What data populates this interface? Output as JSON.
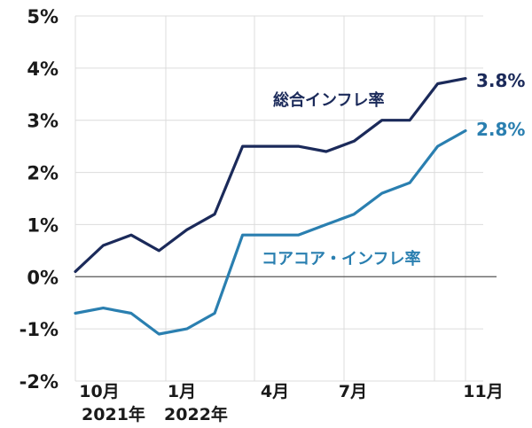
{
  "chart_data": {
    "type": "line",
    "title": "",
    "xlabel": "",
    "ylabel": "",
    "ylim": [
      -2,
      5
    ],
    "yticks": [
      "5%",
      "4%",
      "3%",
      "2%",
      "1%",
      "0%",
      "-1%",
      "-2%"
    ],
    "x": [
      "2021-09",
      "2021-10",
      "2021-11",
      "2021-12",
      "2022-01",
      "2022-02",
      "2022-03",
      "2022-04",
      "2022-05",
      "2022-06",
      "2022-07",
      "2022-08",
      "2022-09",
      "2022-10",
      "2022-11"
    ],
    "xtick_labels": [
      {
        "month": "10月",
        "year": "2021年"
      },
      {
        "month": "1月",
        "year": "2022年"
      },
      {
        "month": "4月",
        "year": ""
      },
      {
        "month": "7月",
        "year": ""
      },
      {
        "month": "11月",
        "year": ""
      }
    ],
    "grid": true,
    "series": [
      {
        "name": "総合インフレ率",
        "color": "#1b2a5a",
        "values": [
          0.1,
          0.6,
          0.8,
          0.5,
          0.9,
          1.2,
          2.5,
          2.5,
          2.5,
          2.4,
          2.6,
          3.0,
          3.0,
          3.7,
          3.8
        ],
        "end_label": "3.8%"
      },
      {
        "name": "コアコア・インフレ率",
        "color": "#2a7fb0",
        "values": [
          -0.7,
          -0.6,
          -0.7,
          -1.1,
          -1.0,
          -0.7,
          0.8,
          0.8,
          0.8,
          1.0,
          1.2,
          1.6,
          1.8,
          2.5,
          2.8
        ],
        "end_label": "2.8%"
      }
    ]
  }
}
